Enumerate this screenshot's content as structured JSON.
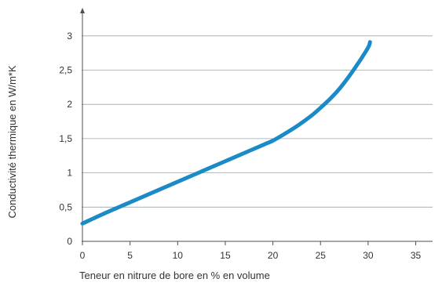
{
  "chart_data": {
    "type": "line",
    "title": "",
    "xlabel": "Teneur en nitrure de bore en % en volume",
    "ylabel": "Conductivité thermique en W/m*K",
    "xlim": [
      0,
      37
    ],
    "ylim": [
      0,
      3.1
    ],
    "x_ticks": [
      0,
      5,
      10,
      15,
      20,
      25,
      30,
      35
    ],
    "x_tick_labels": [
      "0",
      "5",
      "10",
      "15",
      "20",
      "25",
      "30",
      "35"
    ],
    "y_ticks": [
      0,
      0.5,
      1,
      1.5,
      2,
      2.5,
      3
    ],
    "y_tick_labels": [
      "0",
      "0,5",
      "1",
      "1,5",
      "2",
      "2,5",
      "3"
    ],
    "grid": "horizontal",
    "series_color": "#1a8bc6",
    "series": [
      {
        "x": [
          0,
          2.5,
          5,
          7.5,
          10,
          12.5,
          15,
          17.5,
          19,
          20,
          21,
          22.5,
          24,
          25,
          26,
          27,
          28,
          29,
          30,
          30.2
        ],
        "y": [
          0.26,
          0.42,
          0.57,
          0.72,
          0.87,
          1.02,
          1.17,
          1.32,
          1.41,
          1.47,
          1.55,
          1.68,
          1.83,
          1.95,
          2.08,
          2.23,
          2.41,
          2.61,
          2.83,
          2.91
        ]
      }
    ]
  }
}
